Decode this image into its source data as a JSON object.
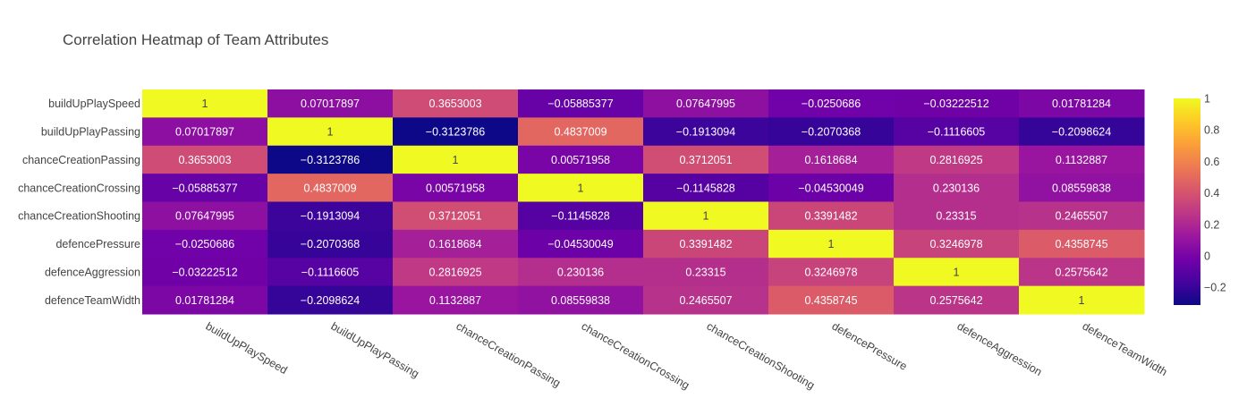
{
  "chart_data": {
    "type": "heatmap",
    "title": "Correlation Heatmap of Team Attributes",
    "x": [
      "buildUpPlaySpeed",
      "buildUpPlayPassing",
      "chanceCreationPassing",
      "chanceCreationCrossing",
      "chanceCreationShooting",
      "defencePressure",
      "defenceAggression",
      "defenceTeamWidth"
    ],
    "y": [
      "buildUpPlaySpeed",
      "buildUpPlayPassing",
      "chanceCreationPassing",
      "chanceCreationCrossing",
      "chanceCreationShooting",
      "defencePressure",
      "defenceAggression",
      "defenceTeamWidth"
    ],
    "z": [
      [
        1,
        0.07017897,
        0.3653003,
        -0.05885377,
        0.07647995,
        -0.0250686,
        -0.03222512,
        0.01781284
      ],
      [
        0.07017897,
        1,
        -0.3123786,
        0.4837009,
        -0.1913094,
        -0.2070368,
        -0.1116605,
        -0.2098624
      ],
      [
        0.3653003,
        -0.3123786,
        1,
        0.00571958,
        0.3712051,
        0.1618684,
        0.2816925,
        0.1132887
      ],
      [
        -0.05885377,
        0.4837009,
        0.00571958,
        1,
        -0.1145828,
        -0.04530049,
        0.230136,
        0.08559838
      ],
      [
        0.07647995,
        -0.1913094,
        0.3712051,
        -0.1145828,
        1,
        0.3391482,
        0.23315,
        0.2465507
      ],
      [
        -0.0250686,
        -0.2070368,
        0.1618684,
        -0.04530049,
        0.3391482,
        1,
        0.3246978,
        0.4358745
      ],
      [
        -0.03222512,
        -0.1116605,
        0.2816925,
        0.230136,
        0.23315,
        0.3246978,
        1,
        0.2575642
      ],
      [
        0.01781284,
        -0.2098624,
        0.1132887,
        0.08559838,
        0.2465507,
        0.4358745,
        0.2575642,
        1
      ]
    ],
    "text": [
      [
        "1",
        "0.07017897",
        "0.3653003",
        "−0.05885377",
        "0.07647995",
        "−0.0250686",
        "−0.03222512",
        "0.01781284"
      ],
      [
        "0.07017897",
        "1",
        "−0.3123786",
        "0.4837009",
        "−0.1913094",
        "−0.2070368",
        "−0.1116605",
        "−0.2098624"
      ],
      [
        "0.3653003",
        "−0.3123786",
        "1",
        "0.00571958",
        "0.3712051",
        "0.1618684",
        "0.2816925",
        "0.1132887"
      ],
      [
        "−0.05885377",
        "0.4837009",
        "0.00571958",
        "1",
        "−0.1145828",
        "−0.04530049",
        "0.230136",
        "0.08559838"
      ],
      [
        "0.07647995",
        "−0.1913094",
        "0.3712051",
        "−0.1145828",
        "1",
        "0.3391482",
        "0.23315",
        "0.2465507"
      ],
      [
        "−0.0250686",
        "−0.2070368",
        "0.1618684",
        "−0.04530049",
        "0.3391482",
        "1",
        "0.3246978",
        "0.4358745"
      ],
      [
        "−0.03222512",
        "−0.1116605",
        "0.2816925",
        "0.230136",
        "0.23315",
        "0.3246978",
        "1",
        "0.2575642"
      ],
      [
        "0.01781284",
        "−0.2098624",
        "0.1132887",
        "0.08559838",
        "0.2465507",
        "0.4358745",
        "0.2575642",
        "1"
      ]
    ],
    "zmin": -0.3123786,
    "zmax": 1,
    "colorscale": "Plasma",
    "colorbar": {
      "ticks": [
        1,
        0.8,
        0.6,
        0.4,
        0.2,
        0,
        -0.2
      ],
      "tick_labels": [
        "1",
        "0.8",
        "0.6",
        "0.4",
        "0.2",
        "0",
        "−0.2"
      ]
    },
    "colors": {
      "plasma": [
        "#0d0887",
        "#46039f",
        "#7201a8",
        "#9c179e",
        "#bd3786",
        "#d8576b",
        "#ed7953",
        "#fb9f3a",
        "#fdca26",
        "#f0f921"
      ],
      "axis_text": "#444444",
      "title_text": "#444444"
    }
  }
}
